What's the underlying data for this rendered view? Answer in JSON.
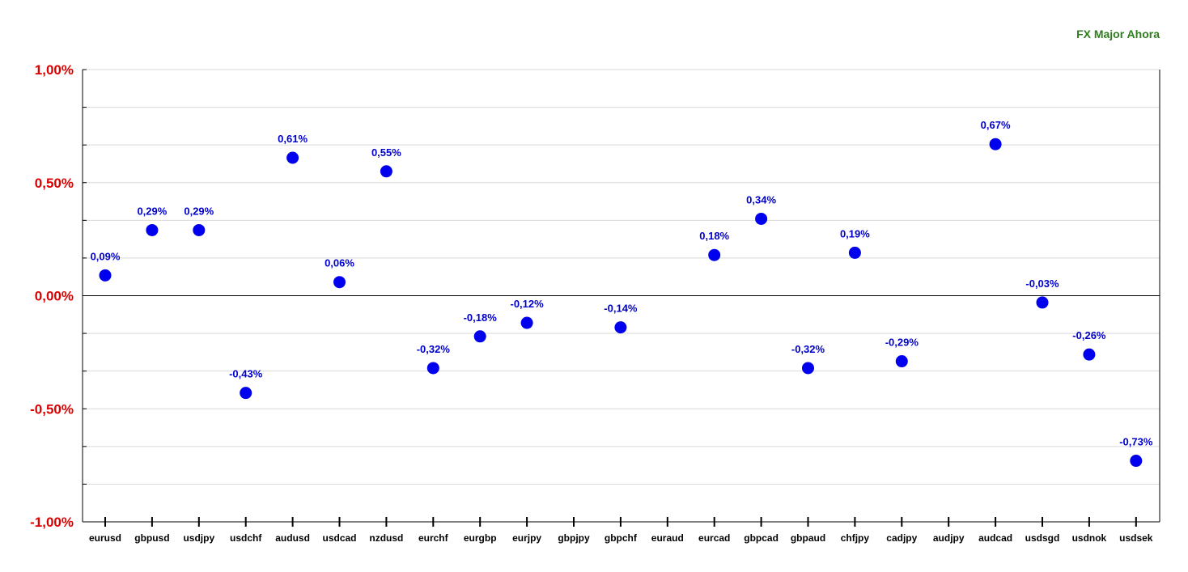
{
  "chart_data": {
    "type": "scatter",
    "title": "FX Major Ahora",
    "xlabel": "",
    "ylabel": "",
    "categories": [
      "eurusd",
      "gbpusd",
      "usdjpy",
      "usdchf",
      "audusd",
      "usdcad",
      "nzdusd",
      "eurchf",
      "eurgbp",
      "eurjpy",
      "gbpjpy",
      "gbpchf",
      "euraud",
      "eurcad",
      "gbpcad",
      "gbpaud",
      "chfjpy",
      "cadjpy",
      "audjpy",
      "audcad",
      "usdsgd",
      "usdnok",
      "usdsek"
    ],
    "values": [
      0.09,
      0.29,
      0.29,
      -0.43,
      0.61,
      0.06,
      0.55,
      -0.32,
      -0.18,
      -0.12,
      null,
      -0.14,
      null,
      0.18,
      0.34,
      -0.32,
      0.19,
      -0.29,
      null,
      0.67,
      -0.03,
      -0.26,
      -0.73
    ],
    "value_labels": [
      "0,09%",
      "0,29%",
      "0,29%",
      "-0,43%",
      "0,61%",
      "0,06%",
      "0,55%",
      "-0,32%",
      "-0,18%",
      "-0,12%",
      "",
      "-0,14%",
      "",
      "0,18%",
      "0,34%",
      "-0,32%",
      "0,19%",
      "-0,29%",
      "",
      "0,67%",
      "-0,03%",
      "-0,26%",
      "-0,73%"
    ],
    "ylim": [
      -1.0,
      1.0
    ],
    "yticks": [
      1.0,
      0.5,
      0.0,
      -0.5,
      -1.0
    ],
    "ytick_labels": [
      "1,00%",
      "0,50%",
      "0,00%",
      "-0,50%",
      "-1,00%"
    ],
    "grid": true,
    "colors": {
      "marker": "#0000ee",
      "data_label": "#0000cc",
      "ytick_label": "#dd0000",
      "title": "#2e7d1e",
      "grid": "#d9d9d9",
      "axis": "#000000"
    }
  }
}
